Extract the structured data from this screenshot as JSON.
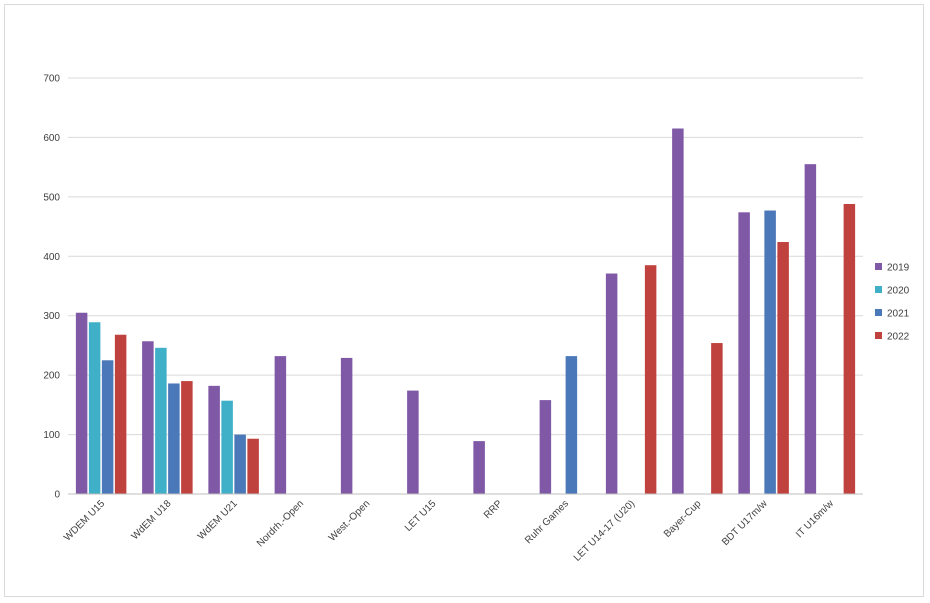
{
  "chart_data": {
    "type": "bar",
    "title": "",
    "xlabel": "",
    "ylabel": "",
    "ylim": [
      0,
      700
    ],
    "yticks": [
      0,
      100,
      200,
      300,
      400,
      500,
      600,
      700
    ],
    "grid": true,
    "legend_position": "right",
    "categories": [
      "WDEM U15",
      "WdEM U18",
      "WdEM U21",
      "Nordrh.-Open",
      "West.-Open",
      "LET U15",
      "RRP",
      "Ruhr Games",
      "LET U14-17 (U20)",
      "Bayer-Cup",
      "BDT U17m/w",
      "IT U16m/w"
    ],
    "series": [
      {
        "name": "2019",
        "color": "#7f58a6",
        "values": [
          305,
          257,
          182,
          232,
          229,
          174,
          89,
          158,
          371,
          615,
          474,
          555
        ]
      },
      {
        "name": "2020",
        "color": "#3fb0c8",
        "values": [
          289,
          246,
          157,
          null,
          null,
          null,
          null,
          null,
          null,
          null,
          null,
          null
        ]
      },
      {
        "name": "2021",
        "color": "#4a78b8",
        "values": [
          225,
          186,
          100,
          null,
          null,
          null,
          null,
          232,
          null,
          null,
          477,
          null
        ]
      },
      {
        "name": "2022",
        "color": "#c0423f",
        "values": [
          268,
          190,
          93,
          null,
          null,
          null,
          null,
          null,
          385,
          254,
          424,
          488
        ]
      }
    ]
  }
}
